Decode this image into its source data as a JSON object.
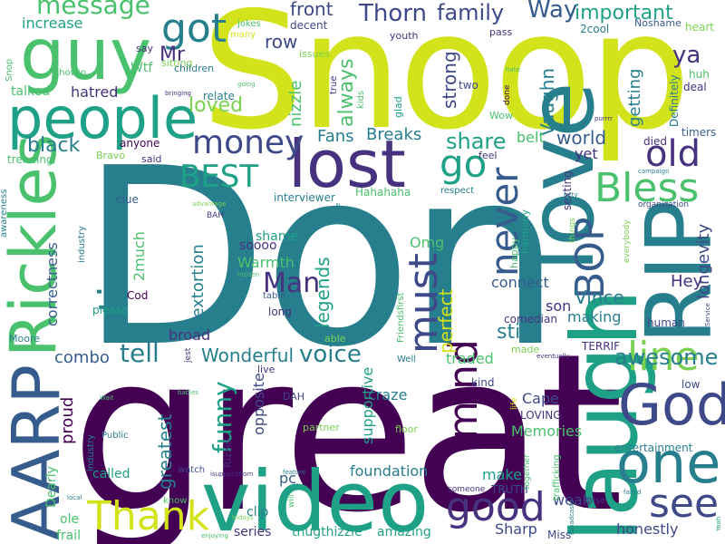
{
  "palette": {
    "yellow": "#d2e21b",
    "lightgreen": "#7ad151",
    "green": "#4ac16d",
    "teal": "#1fa187",
    "bluegreen": "#277f8e",
    "blue": "#365c8d",
    "darkblue": "#3e4989",
    "indigo": "#46327e",
    "purple": "#440154",
    "lime": "#a0da39"
  },
  "words": [
    {
      "text": "Don",
      "color": "#277f8e"
    },
    {
      "text": "great",
      "color": "#440154"
    },
    {
      "text": "Snoop",
      "color": "#d2e21b"
    },
    {
      "text": "RIP",
      "color": "#277f8e"
    },
    {
      "text": "love",
      "color": "#277f8e"
    },
    {
      "text": "laugh",
      "color": "#1fa187"
    },
    {
      "text": "video",
      "color": "#1fa187"
    },
    {
      "text": "Rickles",
      "color": "#4ac16d"
    },
    {
      "text": "AARP",
      "color": "#365c8d"
    },
    {
      "text": "lost",
      "color": "#46327e"
    },
    {
      "text": "people",
      "color": "#1fa187"
    },
    {
      "text": "guy",
      "color": "#4ac16d"
    },
    {
      "text": "one",
      "color": "#277f8e"
    },
    {
      "text": "God",
      "color": "#3e4989"
    },
    {
      "text": "good",
      "color": "#46327e"
    },
    {
      "text": "Thank",
      "color": "#d2e21b"
    },
    {
      "text": "money",
      "color": "#3e4989"
    },
    {
      "text": "mind",
      "color": "#440154"
    },
    {
      "text": "time",
      "color": "#277f8e"
    },
    {
      "text": "BEST",
      "color": "#1fa187"
    },
    {
      "text": "Bless",
      "color": "#4ac16d"
    },
    {
      "text": "line",
      "color": "#7ad151"
    },
    {
      "text": "never",
      "color": "#365c8d"
    },
    {
      "text": "must",
      "color": "#3e4989"
    },
    {
      "text": "BOP",
      "color": "#365c8d"
    },
    {
      "text": "see",
      "color": "#3e4989"
    },
    {
      "text": "old",
      "color": "#46327e"
    },
    {
      "text": "go",
      "color": "#1fa187"
    },
    {
      "text": "got",
      "color": "#277f8e"
    },
    {
      "text": "message",
      "color": "#4ac16d"
    },
    {
      "text": "Man",
      "color": "#46327e"
    },
    {
      "text": "funny",
      "color": "#1fa187"
    },
    {
      "text": "awesome",
      "color": "#277f8e"
    },
    {
      "text": "tell",
      "color": "#277f8e"
    },
    {
      "text": "Wonderful",
      "color": "#277f8e"
    },
    {
      "text": "voice",
      "color": "#277f8e"
    },
    {
      "text": "share",
      "color": "#1fa187"
    },
    {
      "text": "Thorn",
      "color": "#3e4989"
    },
    {
      "text": "family",
      "color": "#3e4989"
    },
    {
      "text": "Way",
      "color": "#365c8d"
    },
    {
      "text": "important",
      "color": "#1fa187"
    },
    {
      "text": "ya",
      "color": "#46327e"
    },
    {
      "text": "black",
      "color": "#277f8e"
    },
    {
      "text": "loved",
      "color": "#7ad151"
    },
    {
      "text": "hatred",
      "color": "#46327e"
    },
    {
      "text": "Mr",
      "color": "#46327e"
    },
    {
      "text": "front",
      "color": "#3e4989"
    },
    {
      "text": "row",
      "color": "#3e4989"
    },
    {
      "text": "increase",
      "color": "#1fa187"
    },
    {
      "text": "Vaughn",
      "color": "#277f8e"
    },
    {
      "text": "strong",
      "color": "#3e4989"
    },
    {
      "text": "getting",
      "color": "#277f8e"
    },
    {
      "text": "always",
      "color": "#4ac16d"
    },
    {
      "text": "nizzle",
      "color": "#4ac16d"
    },
    {
      "text": "Fans",
      "color": "#277f8e"
    },
    {
      "text": "Breaks",
      "color": "#277f8e"
    },
    {
      "text": "world",
      "color": "#365c8d"
    },
    {
      "text": "belt",
      "color": "#4ac16d"
    },
    {
      "text": "yet",
      "color": "#46327e"
    },
    {
      "text": "perfect",
      "color": "#d2e21b"
    },
    {
      "text": "legends",
      "color": "#1fa187"
    },
    {
      "text": "sextortion",
      "color": "#277f8e"
    },
    {
      "text": "Vince",
      "color": "#277f8e"
    },
    {
      "text": "longevity",
      "color": "#3e4989"
    },
    {
      "text": "Hey",
      "color": "#46327e"
    },
    {
      "text": "still",
      "color": "#277f8e"
    },
    {
      "text": "connect",
      "color": "#365c8d"
    },
    {
      "text": "son",
      "color": "#46327e"
    },
    {
      "text": "making",
      "color": "#277f8e"
    },
    {
      "text": "Omg",
      "color": "#4ac16d"
    },
    {
      "text": "Warmth",
      "color": "#4ac16d"
    },
    {
      "text": "2much",
      "color": "#4ac16d"
    },
    {
      "text": "soooo",
      "color": "#46327e"
    },
    {
      "text": "shame",
      "color": "#1fa187"
    },
    {
      "text": "pc",
      "color": "#365c8d"
    },
    {
      "text": "combo",
      "color": "#365c8d"
    },
    {
      "text": "proud",
      "color": "#440154"
    },
    {
      "text": "greatest",
      "color": "#277f8e"
    },
    {
      "text": "correctness",
      "color": "#365c8d"
    },
    {
      "text": "broad",
      "color": "#46327e"
    },
    {
      "text": "traded",
      "color": "#4ac16d"
    },
    {
      "text": "craze",
      "color": "#277f8e"
    },
    {
      "text": "Cape",
      "color": "#3e4989"
    },
    {
      "text": "Memories",
      "color": "#4ac16d"
    },
    {
      "text": "make",
      "color": "#1fa187"
    },
    {
      "text": "weak",
      "color": "#3e4989"
    },
    {
      "text": "honestly",
      "color": "#3e4989"
    },
    {
      "text": "Sharp",
      "color": "#3e4989"
    },
    {
      "text": "series",
      "color": "#46327e"
    },
    {
      "text": "thugthizzle",
      "color": "#1fa187"
    },
    {
      "text": "amazing",
      "color": "#1fa187"
    },
    {
      "text": "foundation",
      "color": "#277f8e"
    },
    {
      "text": "supportive",
      "color": "#1fa187"
    },
    {
      "text": "opposite",
      "color": "#3e4989"
    },
    {
      "text": "Dearly",
      "color": "#4ac16d"
    },
    {
      "text": "ole",
      "color": "#4ac16d"
    },
    {
      "text": "frail",
      "color": "#4ac16d"
    },
    {
      "text": "called",
      "color": "#1fa187"
    },
    {
      "text": "clip",
      "color": "#277f8e"
    },
    {
      "text": "comedian",
      "color": "#46327e"
    },
    {
      "text": "entertainment",
      "color": "#277f8e"
    },
    {
      "text": "low",
      "color": "#3e4989"
    },
    {
      "text": "TERRIF",
      "color": "#46327e"
    },
    {
      "text": "LOVING",
      "color": "#46327e"
    },
    {
      "text": "TRUTH",
      "color": "#3e4989"
    },
    {
      "text": "Miss",
      "color": "#3e4989"
    },
    {
      "text": "kind",
      "color": "#3e4989"
    },
    {
      "text": "human",
      "color": "#3e4989"
    },
    {
      "text": "died",
      "color": "#46327e"
    },
    {
      "text": "timers",
      "color": "#365c8d"
    },
    {
      "text": "Definitely",
      "color": "#277f8e"
    },
    {
      "text": "deal",
      "color": "#46327e"
    },
    {
      "text": "huh",
      "color": "#4ac16d"
    },
    {
      "text": "Noshame",
      "color": "#365c8d"
    },
    {
      "text": "heart",
      "color": "#7ad151"
    },
    {
      "text": "2cool",
      "color": "#277f8e"
    },
    {
      "text": "pass",
      "color": "#46327e"
    },
    {
      "text": "youth",
      "color": "#46327e"
    },
    {
      "text": "decent",
      "color": "#3e4989"
    },
    {
      "text": "jokes",
      "color": "#4ac16d"
    },
    {
      "text": "many",
      "color": "#d2e21b"
    },
    {
      "text": "say",
      "color": "#46327e"
    },
    {
      "text": "sitting",
      "color": "#7ad151"
    },
    {
      "text": "issues",
      "color": "#7ad151"
    },
    {
      "text": "Wtf",
      "color": "#4ac16d"
    },
    {
      "text": "children",
      "color": "#277f8e"
    },
    {
      "text": "talked",
      "color": "#4ac16d"
    },
    {
      "text": "relate",
      "color": "#277f8e"
    },
    {
      "text": "anyone",
      "color": "#440154"
    },
    {
      "text": "trending",
      "color": "#4ac16d"
    },
    {
      "text": "Bravo",
      "color": "#7ad151"
    },
    {
      "text": "said",
      "color": "#46327e"
    },
    {
      "text": "clue",
      "color": "#365c8d"
    },
    {
      "text": "interviewer",
      "color": "#277f8e"
    },
    {
      "text": "Hahahaha",
      "color": "#4ac16d"
    },
    {
      "text": "respect",
      "color": "#277f8e"
    },
    {
      "text": "feel",
      "color": "#46327e"
    },
    {
      "text": "Wow",
      "color": "#4ac16d"
    },
    {
      "text": "two",
      "color": "#3e4989"
    },
    {
      "text": "glad",
      "color": "#1fa187"
    },
    {
      "text": "sexting",
      "color": "#46327e"
    },
    {
      "text": "happy",
      "color": "#4ac16d"
    },
    {
      "text": "harmony",
      "color": "#1fa187"
    },
    {
      "text": "organization",
      "color": "#3e4989"
    },
    {
      "text": "BAH",
      "color": "#46327e"
    },
    {
      "text": "Cod",
      "color": "#440154"
    },
    {
      "text": "please",
      "color": "#1fa187"
    },
    {
      "text": "long",
      "color": "#46327e"
    },
    {
      "text": "table",
      "color": "#365c8d"
    },
    {
      "text": "Moore",
      "color": "#277f8e"
    },
    {
      "text": "able",
      "color": "#7ad151"
    },
    {
      "text": "live",
      "color": "#46327e"
    },
    {
      "text": "Well",
      "color": "#277f8e"
    },
    {
      "text": "made",
      "color": "#7ad151"
    },
    {
      "text": "Public",
      "color": "#277f8e"
    },
    {
      "text": "industry",
      "color": "#277f8e"
    },
    {
      "text": "watch",
      "color": "#3e4989"
    },
    {
      "text": "Rizzel",
      "color": "#46327e"
    },
    {
      "text": "DAH",
      "color": "#3e4989"
    },
    {
      "text": "partner",
      "color": "#7ad151"
    },
    {
      "text": "floor",
      "color": "#7ad151"
    },
    {
      "text": "someone",
      "color": "#46327e"
    },
    {
      "text": "know",
      "color": "#4ac16d"
    },
    {
      "text": "raise",
      "color": "#46327e"
    },
    {
      "text": "awareness",
      "color": "#277f8e"
    },
    {
      "text": "Friendsfirst",
      "color": "#4ac16d"
    },
    {
      "text": "trafficking",
      "color": "#4ac16d"
    },
    {
      "text": "together",
      "color": "#4ac16d"
    },
    {
      "text": "life",
      "color": "#d2e21b"
    },
    {
      "text": "things",
      "color": "#7ad151"
    },
    {
      "text": "everybody",
      "color": "#7ad151"
    },
    {
      "text": "true",
      "color": "#46327e"
    },
    {
      "text": "kids",
      "color": "#4ac16d"
    },
    {
      "text": "done",
      "color": "#440154"
    },
    {
      "text": "hate",
      "color": "#4ac16d"
    },
    {
      "text": "purrrr",
      "color": "#46327e"
    },
    {
      "text": "showin",
      "color": "#4ac16d"
    },
    {
      "text": "bringing",
      "color": "#46327e"
    },
    {
      "text": "going",
      "color": "#4ac16d"
    },
    {
      "text": "Snop",
      "color": "#4ac16d"
    },
    {
      "text": "isupportthorn",
      "color": "#46327e"
    },
    {
      "text": "feature",
      "color": "#277f8e"
    },
    {
      "text": "will",
      "color": "#4ac16d"
    },
    {
      "text": "local",
      "color": "#277f8e"
    },
    {
      "text": "enjoying",
      "color": "#4ac16d"
    },
    {
      "text": "todays",
      "color": "#7ad151"
    },
    {
      "text": "failed",
      "color": "#277f8e"
    },
    {
      "text": "Wait",
      "color": "#4ac16d"
    },
    {
      "text": "babies",
      "color": "#4ac16d"
    },
    {
      "text": "Service",
      "color": "#3e4989"
    },
    {
      "text": "kitty",
      "color": "#277f8e"
    },
    {
      "text": "campaign",
      "color": "#277f8e"
    },
    {
      "text": "advantage",
      "color": "#7ad151"
    },
    {
      "text": "hidden",
      "color": "#4ac16d"
    },
    {
      "text": "side",
      "color": "#277f8e"
    },
    {
      "text": "jest",
      "color": "#46327e"
    },
    {
      "text": "broadcasts",
      "color": "#277f8e"
    },
    {
      "text": "eventually",
      "color": "#46327e"
    },
    {
      "text": "Yeah",
      "color": "#1fa187"
    },
    {
      "text": "industry",
      "color": "#277f8e"
    }
  ]
}
